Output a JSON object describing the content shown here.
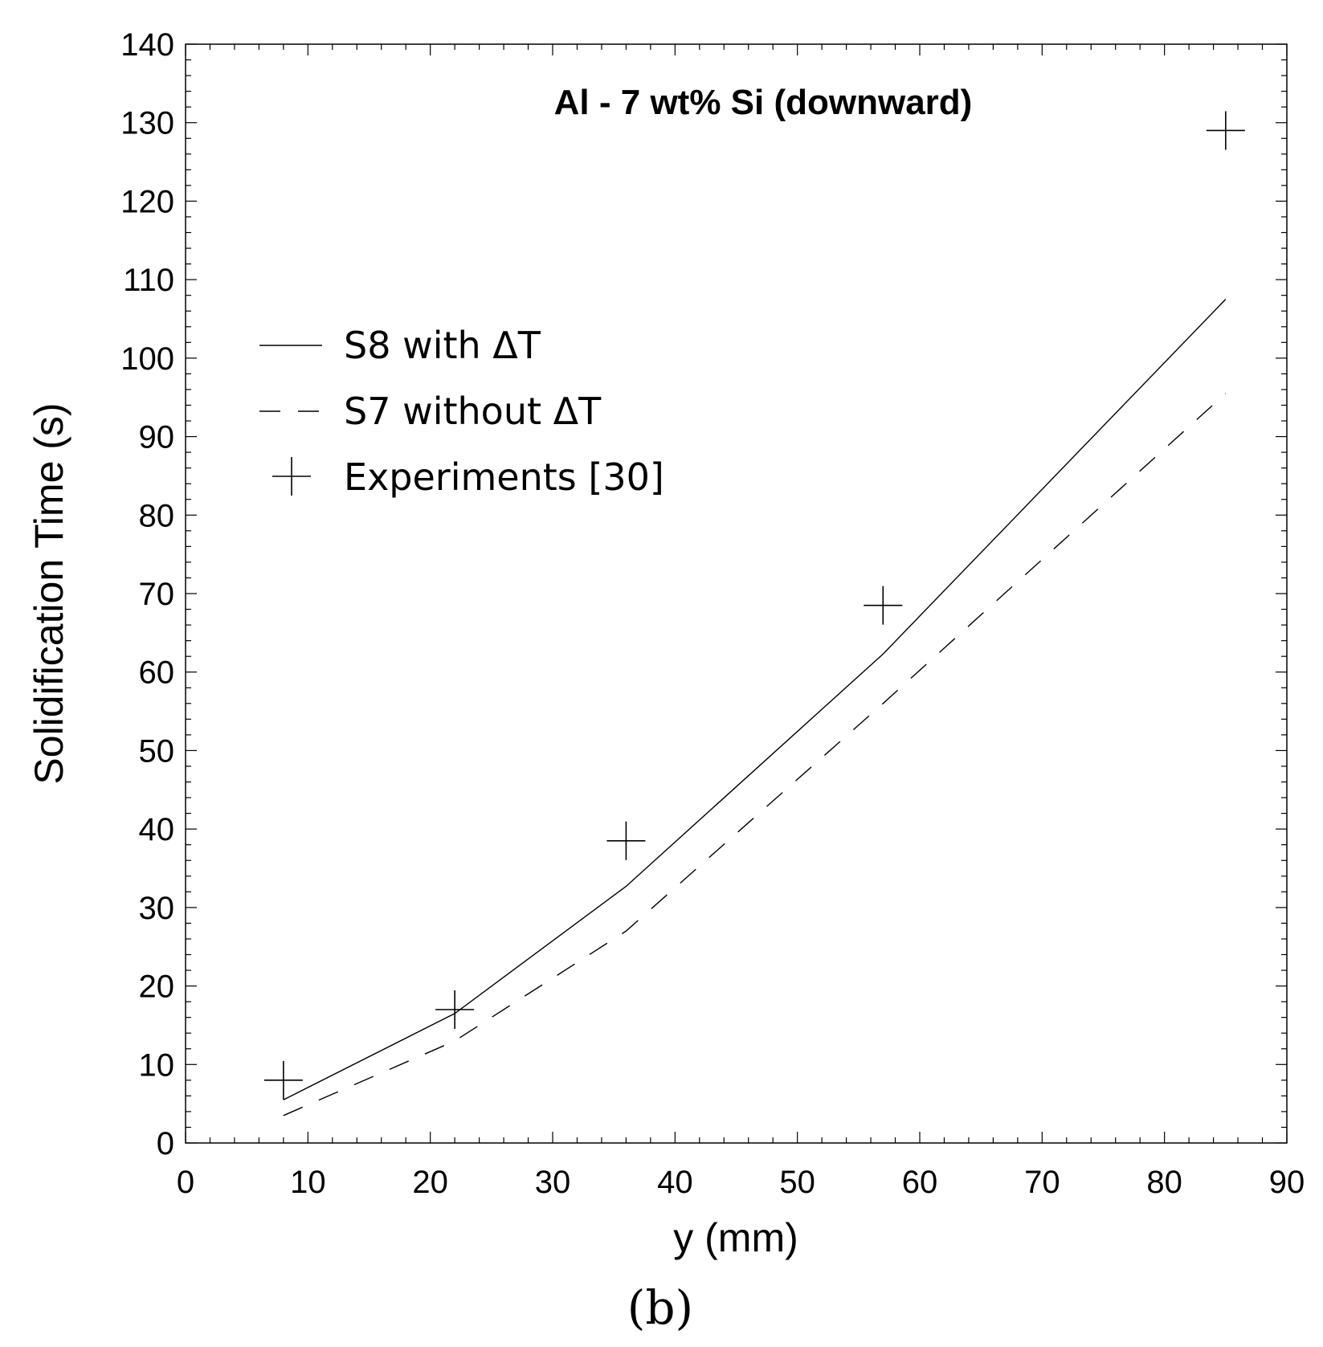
{
  "chart_data": {
    "type": "line",
    "title": "Al - 7 wt% Si (downward)",
    "xlabel": "y (mm)",
    "ylabel": "Solidification Time (s)",
    "xlim": [
      0,
      90
    ],
    "ylim": [
      0,
      140
    ],
    "xticks": [
      "0",
      "10",
      "20",
      "30",
      "40",
      "50",
      "60",
      "70",
      "80",
      "90"
    ],
    "yticks": [
      "0",
      "10",
      "20",
      "30",
      "40",
      "50",
      "60",
      "70",
      "80",
      "90",
      "100",
      "110",
      "120",
      "130",
      "140"
    ],
    "series": [
      {
        "name": "S8 with ΔT",
        "style": "solid",
        "x": [
          8,
          22,
          36,
          57,
          85
        ],
        "y": [
          5.5,
          16.5,
          32.7,
          62.3,
          107.5
        ]
      },
      {
        "name": "S7 without ΔT",
        "style": "dashed",
        "x": [
          8,
          22,
          36,
          57,
          85
        ],
        "y": [
          3.5,
          13.0,
          27.0,
          56.0,
          95.5
        ]
      },
      {
        "name": "Experiments [30]",
        "style": "marker-plus",
        "x": [
          8,
          22,
          36,
          57,
          85
        ],
        "y": [
          8,
          17,
          38.5,
          68.5,
          129
        ]
      }
    ],
    "legend": [
      "S8 with ΔT",
      "S7 without ΔT",
      "Experiments [30]"
    ],
    "legend_position": "upper-left",
    "grid": false,
    "panel_label": "(b)"
  }
}
